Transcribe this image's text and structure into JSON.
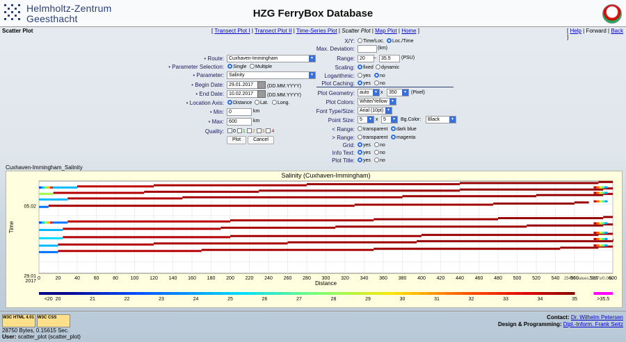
{
  "header": {
    "logo_line1": "Helmholtz-Zentrum",
    "logo_line2": "Geesthacht",
    "title": "HZG FerryBox Database"
  },
  "nav": {
    "page_label": "Scatter Plot",
    "links": {
      "transect1": "Transect Plot I",
      "transect2": "Transect Plot II",
      "timeseries": "Time-Series Plot",
      "current": "Scatter Plot",
      "map": "Map Plot",
      "home": "Home"
    },
    "right": {
      "help": "Help",
      "forward": "Forward",
      "back": "Back"
    }
  },
  "form": {
    "route_label": "Route:",
    "route_value": "Cuxhaven-Immingham",
    "param_sel_label": "Parameter Selection:",
    "param_sel_single": "Single",
    "param_sel_multiple": "Multiple",
    "parameter_label": "Parameter:",
    "parameter_value": "Salinity",
    "begin_label": "Begin Date:",
    "begin_value": "29.01.2017",
    "begin_fmt": "(DD.MM.YYYY)",
    "end_label": "End Date:",
    "end_value": "10.02.2017",
    "end_fmt": "(DD.MM.YYYY)",
    "axis_label": "Location Axis:",
    "axis_distance": "Distance",
    "axis_lat": "Lat.",
    "axis_long": "Long.",
    "min_label": "Min:",
    "min_value": "0",
    "min_unit": "km",
    "max_label": "Max:",
    "max_value": "600",
    "max_unit": "km",
    "quality_label": "Quality:",
    "quality": [
      "0",
      "1",
      "2",
      "3",
      "4"
    ],
    "plot_btn": "Plot",
    "cancel_btn": "Cancel"
  },
  "settings": {
    "xy_label": "X/Y:",
    "xy_a": "Time/Loc.",
    "xy_b": "Loc./Time",
    "maxdev_label": "Max. Deviation:",
    "maxdev_unit": "(km)",
    "range_label": "Range:",
    "range_min": "20",
    "range_max": "35.5",
    "range_unit": "(PSU)",
    "scaling_label": "Scaling:",
    "scaling_fixed": "fixed",
    "scaling_dynamic": "dynamic",
    "log_label": "Logarithmic:",
    "yes": "yes",
    "no": "no",
    "caching_label": "Plot Caching:",
    "geom_label": "Plot Geometry:",
    "geom_w": "auto",
    "geom_x": "x",
    "geom_h": "350",
    "geom_unit": "(Pixel)",
    "colors_label": "Plot Colors:",
    "colors_value": "White/Yellow",
    "font_label": "Font Type/Size:",
    "font_value": "Arial (10pt)",
    "point_label": "Point Size:",
    "point_w": "5",
    "point_h": "5",
    "bg_label": "Bg.Color:",
    "bg_value": "Black",
    "lt_label": "< Range:",
    "lt_a": "transparent",
    "lt_b": "dark blue",
    "gt_label": "> Range:",
    "gt_a": "transparent",
    "gt_b": "magenta",
    "grid_label": "Grid:",
    "info_label": "Info Text:",
    "ptitle_label": "Plot Title:"
  },
  "plot_caption": "Cuxhaven-Immingham_Salinity",
  "chart_data": {
    "type": "scatter",
    "title": "Salinity (Cuxhaven-Immingham)",
    "xlabel": "Distance",
    "ylabel": "Time",
    "xlim": [
      0,
      600
    ],
    "x_ticks": [
      0,
      20,
      40,
      60,
      80,
      100,
      120,
      140,
      160,
      180,
      200,
      220,
      240,
      260,
      280,
      300,
      320,
      340,
      360,
      380,
      400,
      420,
      440,
      460,
      480,
      500,
      520,
      540,
      560,
      580,
      600
    ],
    "y_ticks": [
      {
        "label": "05.02",
        "sub": ""
      },
      {
        "label": "29.01",
        "sub": "2017"
      }
    ],
    "ylim": [
      "29.01.2017",
      "10.02.2017"
    ],
    "stats": "25497 values, 0.27s/0.00s",
    "grid": true,
    "colorbar": {
      "min": 20,
      "max": 35.5,
      "labels": [
        "<20",
        "20",
        "21",
        "22",
        "23",
        "24",
        "25",
        "26",
        "27",
        "28",
        "29",
        "30",
        "31",
        "32",
        "33",
        "34",
        "35",
        ">35.5"
      ],
      "below_color": "#00008b",
      "above_color": "#ff00ff"
    },
    "transects": [
      {
        "time_frac": 0.93,
        "steps": [
          [
            0,
            0.3
          ],
          [
            40,
            0.95
          ],
          [
            120,
            0.97
          ],
          [
            280,
            0.98
          ],
          [
            440,
            0.99
          ],
          [
            585,
            0.99
          ]
        ],
        "end_gradient": "left"
      },
      {
        "time_frac": 0.86,
        "steps": [
          [
            0,
            0.55
          ],
          [
            15,
            0.96
          ],
          [
            110,
            0.975
          ],
          [
            230,
            0.985
          ],
          [
            440,
            0.99
          ],
          [
            590,
            0.98
          ]
        ],
        "end_gradient": "right"
      },
      {
        "time_frac": 0.8,
        "steps": [
          [
            0,
            0.3
          ],
          [
            30,
            0.96
          ],
          [
            150,
            0.97
          ],
          [
            380,
            0.985
          ],
          [
            520,
            0.99
          ],
          [
            590,
            0.97
          ]
        ],
        "end_gradient": "right"
      },
      {
        "time_frac": 0.72,
        "steps": [
          [
            0,
            0.2
          ],
          [
            10,
            0.97
          ],
          [
            330,
            0.98
          ],
          [
            475,
            0.99
          ],
          [
            560,
            0.99
          ]
        ],
        "end_gradient": "right"
      },
      {
        "time_frac": 0.55,
        "steps": [
          [
            0,
            0.2
          ],
          [
            30,
            0.95
          ],
          [
            200,
            0.97
          ],
          [
            350,
            0.98
          ],
          [
            480,
            0.99
          ],
          [
            590,
            0.99
          ]
        ],
        "end_gradient": "left"
      },
      {
        "time_frac": 0.47,
        "steps": [
          [
            0,
            0.3
          ],
          [
            25,
            0.96
          ],
          [
            190,
            0.97
          ],
          [
            310,
            0.98
          ],
          [
            510,
            0.99
          ],
          [
            590,
            0.99
          ]
        ],
        "end_gradient": "right"
      },
      {
        "time_frac": 0.38,
        "steps": [
          [
            0,
            0.35
          ],
          [
            25,
            0.96
          ],
          [
            200,
            0.975
          ],
          [
            400,
            0.985
          ],
          [
            585,
            0.98
          ]
        ],
        "end_gradient": "right"
      },
      {
        "time_frac": 0.3,
        "steps": [
          [
            0,
            0.3
          ],
          [
            20,
            0.96
          ],
          [
            120,
            0.97
          ],
          [
            260,
            0.98
          ],
          [
            395,
            0.99
          ],
          [
            600,
            0.99
          ]
        ],
        "end_gradient": "right"
      },
      {
        "time_frac": 0.23,
        "steps": [
          [
            0,
            0.2
          ],
          [
            20,
            0.96
          ],
          [
            170,
            0.97
          ],
          [
            350,
            0.98
          ],
          [
            545,
            0.985
          ],
          [
            585,
            0.97
          ]
        ],
        "end_gradient": "right"
      }
    ]
  },
  "footer": {
    "w3c_html": "W3C HTML 4.01",
    "w3c_css": "W3C CSS",
    "bytes": "28750 Bytes, 0.15615 Sec.",
    "user_label": "User:",
    "user_value": "scatter_plot (scatter_plot)",
    "contact_label": "Contact:",
    "contact_name": "Dr. Wilhelm Petersen",
    "design_label": "Design & Programming:",
    "design_name": "Dipl.-Inform. Frank Seitz"
  }
}
